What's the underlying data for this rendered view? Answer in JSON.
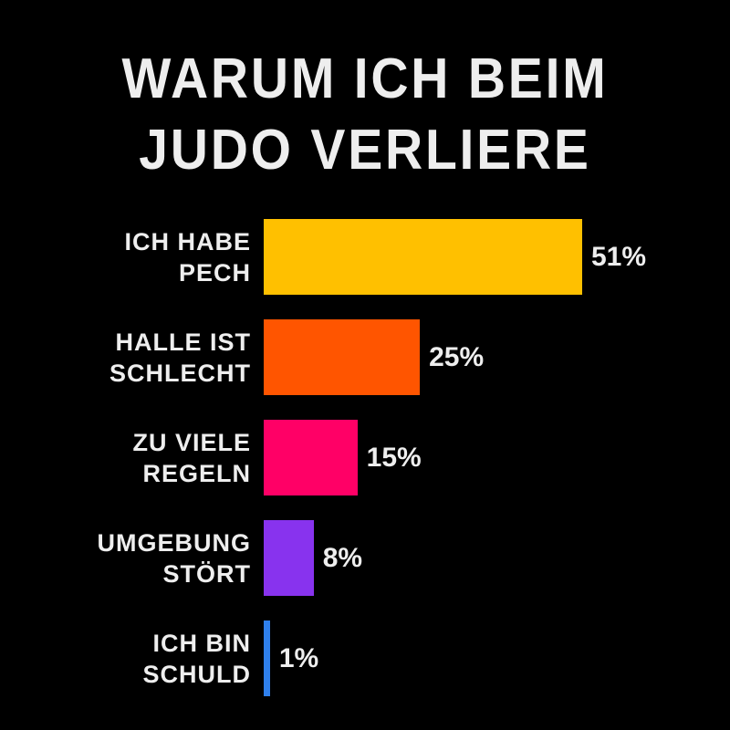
{
  "chart_data": {
    "type": "bar",
    "orientation": "horizontal",
    "title": "WARUM ICH BEIM\nJUDO VERLIERE",
    "categories": [
      "ICH HABE\nPECH",
      "HALLE IST\nSCHLECHT",
      "ZU VIELE\nREGELN",
      "UMGEBUNG\nSTÖRT",
      "ICH BIN\nSCHULD"
    ],
    "values": [
      51,
      25,
      15,
      8,
      1
    ],
    "value_labels": [
      "51%",
      "25%",
      "15%",
      "8%",
      "1%"
    ],
    "colors": [
      "#ffc000",
      "#ff5500",
      "#ff0066",
      "#8833ee",
      "#2f80ed"
    ]
  }
}
